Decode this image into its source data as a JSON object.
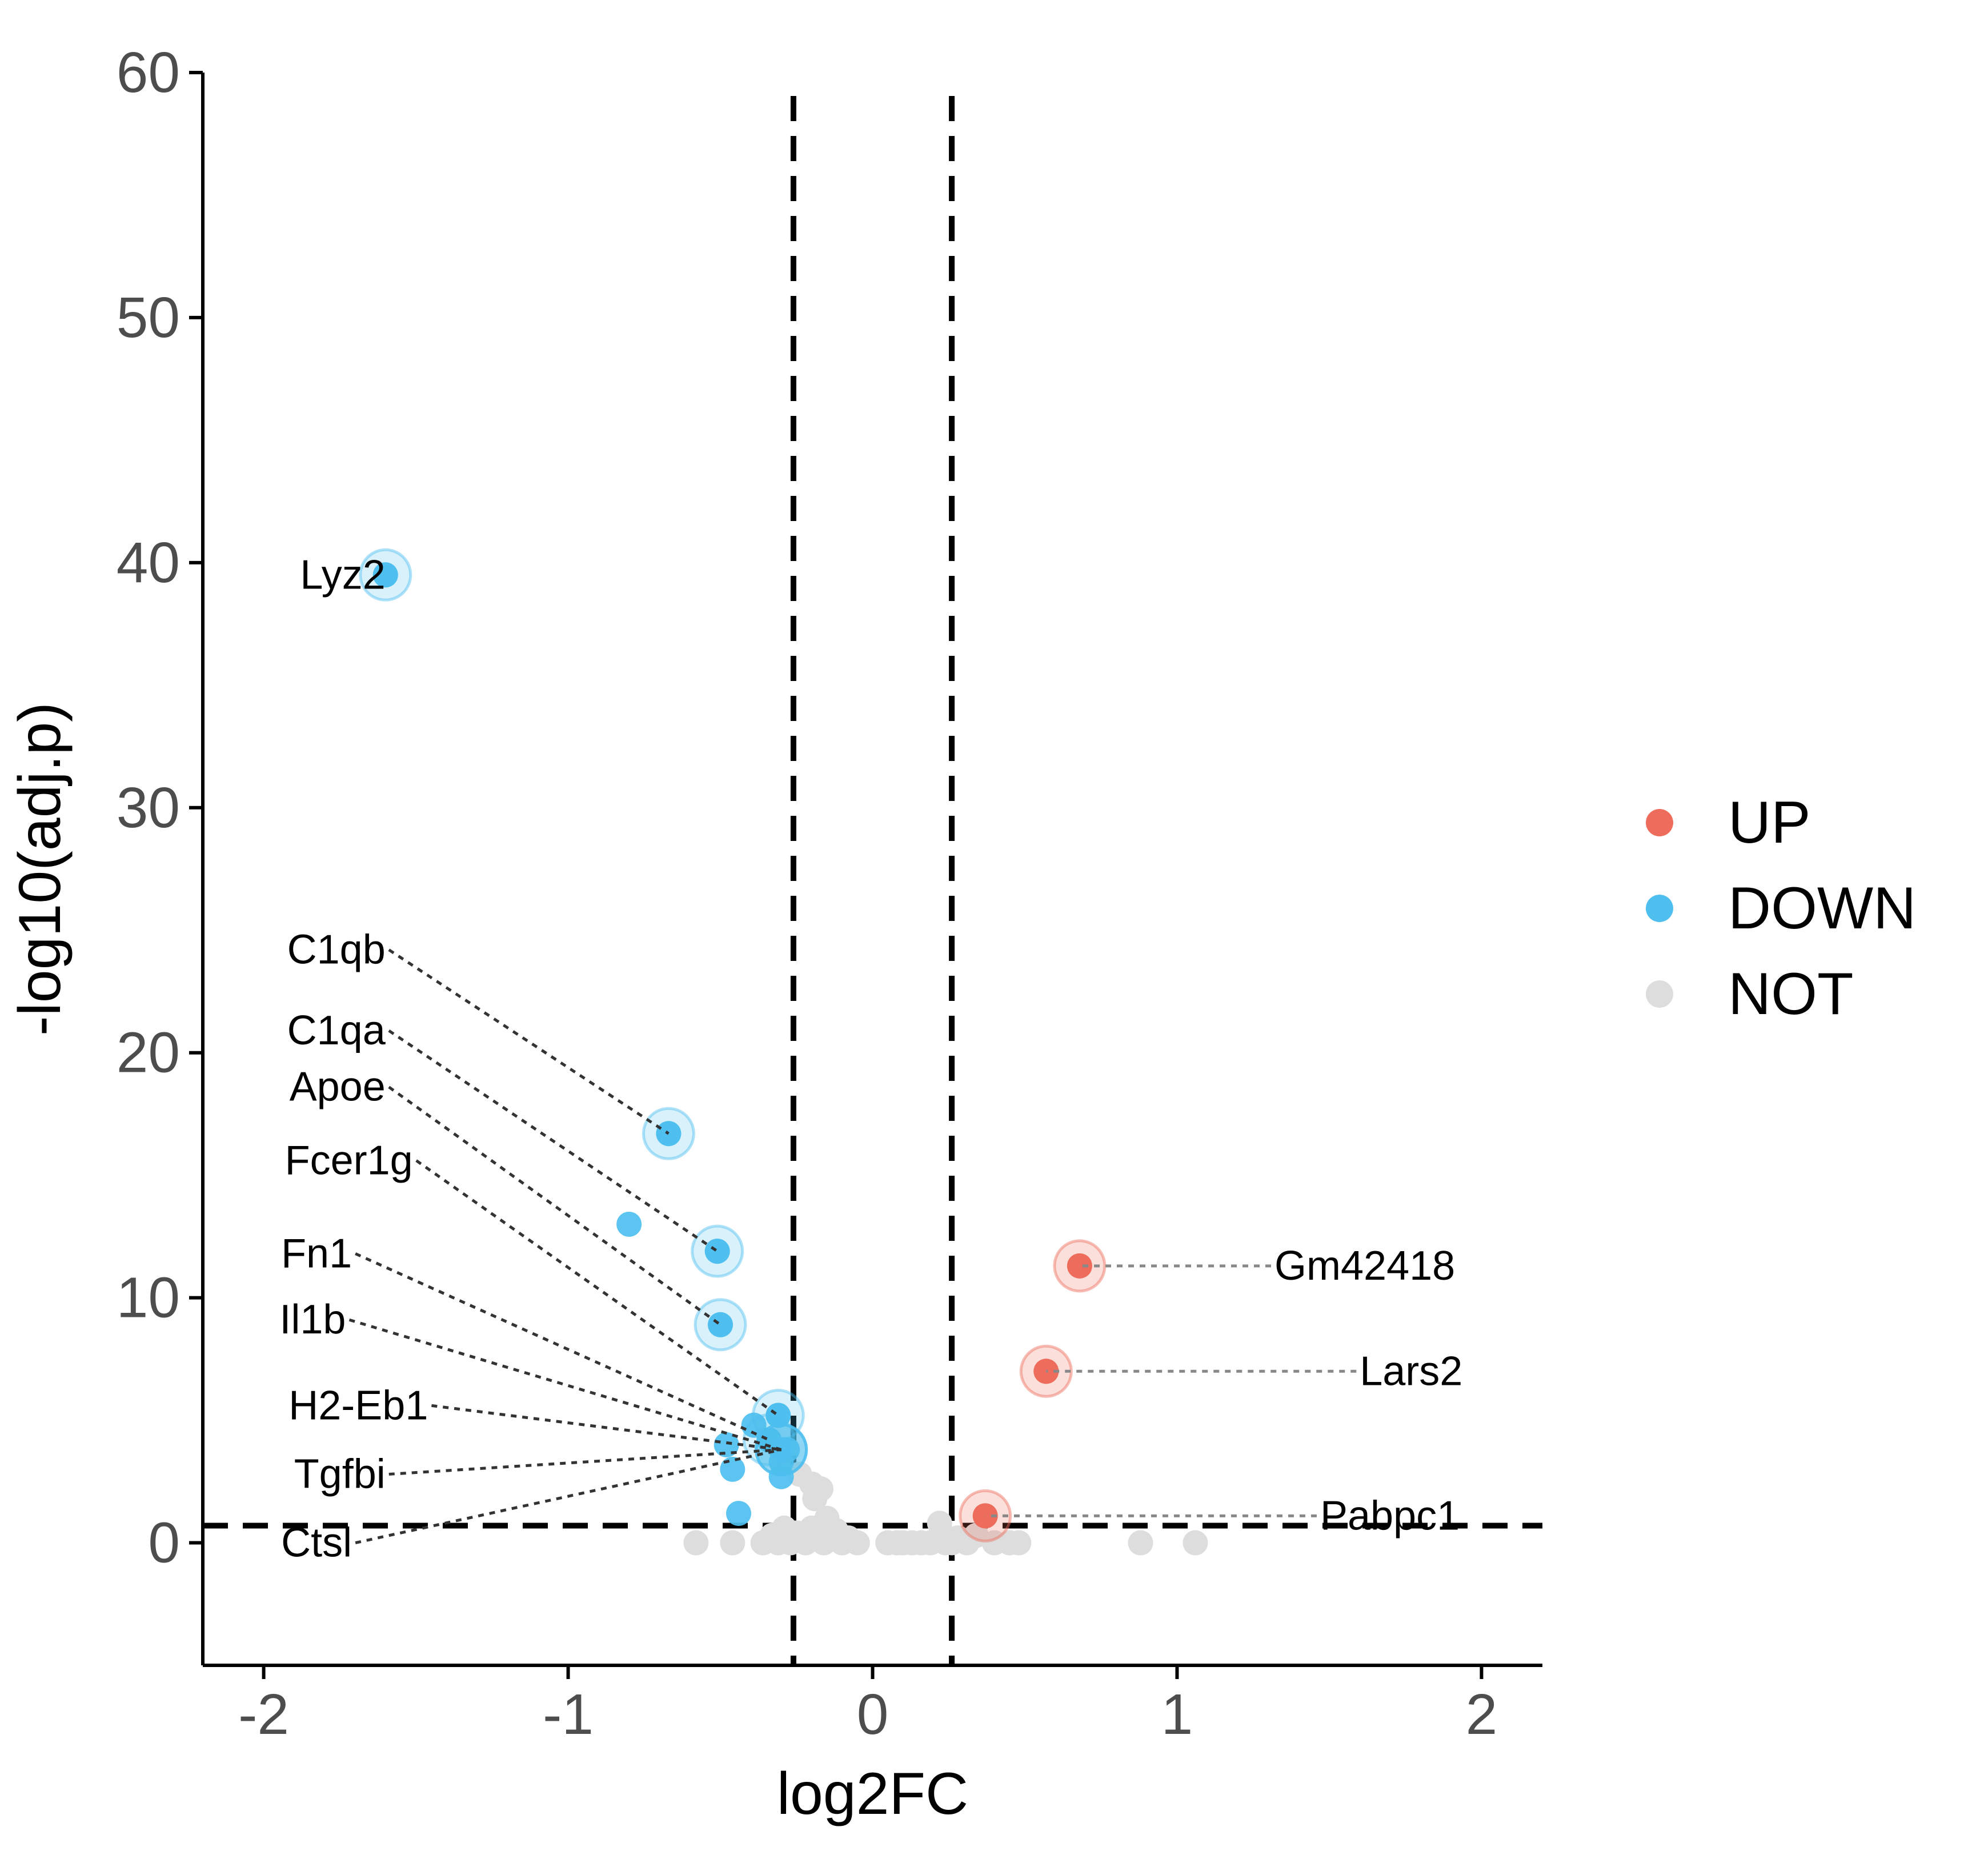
{
  "chart_data": {
    "type": "scatter",
    "title": "",
    "xlabel": "log2FC",
    "ylabel": "-log10(adj.p)",
    "xlim": [
      -2.2,
      2.2
    ],
    "ylim": [
      -5,
      60
    ],
    "x_ticks": [
      -2,
      -1,
      0,
      1,
      2
    ],
    "x_tick_labels": [
      "-2",
      "-1",
      "0",
      "1",
      "2"
    ],
    "y_ticks": [
      0,
      10,
      20,
      30,
      40,
      50,
      60
    ],
    "y_tick_labels": [
      "0",
      "10",
      "20",
      "30",
      "40",
      "50",
      "60"
    ],
    "grid": false,
    "legend_position": "right",
    "thresholds": {
      "log2fc": [
        -0.26,
        0.26
      ],
      "neg_log10_p": 0.7
    },
    "colors": {
      "UP": "#ee6c5c",
      "DOWN": "#4ebfef",
      "NOT": "#dddddd",
      "threshold": "#000000"
    },
    "series": [
      {
        "name": "UP",
        "points": [
          {
            "x": 0.68,
            "y": 11.3
          },
          {
            "x": 0.57,
            "y": 7.0
          },
          {
            "x": 0.37,
            "y": 1.1
          }
        ]
      },
      {
        "name": "DOWN",
        "points": [
          {
            "x": -1.6,
            "y": 39.5
          },
          {
            "x": -0.67,
            "y": 16.7
          },
          {
            "x": -0.8,
            "y": 13.0
          },
          {
            "x": -0.51,
            "y": 11.9
          },
          {
            "x": -0.5,
            "y": 8.9
          },
          {
            "x": -0.31,
            "y": 5.2
          },
          {
            "x": -0.39,
            "y": 4.8
          },
          {
            "x": -0.34,
            "y": 4.2
          },
          {
            "x": -0.28,
            "y": 3.8
          },
          {
            "x": -0.48,
            "y": 4.0
          },
          {
            "x": -0.3,
            "y": 3.3
          },
          {
            "x": -0.46,
            "y": 3.0
          },
          {
            "x": -0.3,
            "y": 2.7
          },
          {
            "x": -0.44,
            "y": 1.2
          }
        ]
      },
      {
        "name": "NOT",
        "points": [
          {
            "x": -0.58,
            "y": 0
          },
          {
            "x": -0.46,
            "y": 0
          },
          {
            "x": -0.36,
            "y": 0
          },
          {
            "x": -0.33,
            "y": 0.3
          },
          {
            "x": -0.31,
            "y": 0
          },
          {
            "x": -0.29,
            "y": 0.6
          },
          {
            "x": -0.27,
            "y": 0
          },
          {
            "x": -0.25,
            "y": 0.4
          },
          {
            "x": -0.24,
            "y": 2.8
          },
          {
            "x": -0.22,
            "y": 0
          },
          {
            "x": -0.2,
            "y": 2.4
          },
          {
            "x": -0.19,
            "y": 1.8
          },
          {
            "x": -0.2,
            "y": 0.6
          },
          {
            "x": -0.17,
            "y": 2.2
          },
          {
            "x": -0.16,
            "y": 0
          },
          {
            "x": -0.15,
            "y": 1.0
          },
          {
            "x": -0.14,
            "y": 0.3
          },
          {
            "x": -0.12,
            "y": 0.5
          },
          {
            "x": -0.1,
            "y": 0
          },
          {
            "x": -0.08,
            "y": 0.2
          },
          {
            "x": -0.05,
            "y": 0
          },
          {
            "x": 0.05,
            "y": 0
          },
          {
            "x": 0.08,
            "y": 0
          },
          {
            "x": 0.1,
            "y": 0
          },
          {
            "x": 0.13,
            "y": 0
          },
          {
            "x": 0.16,
            "y": 0
          },
          {
            "x": 0.19,
            "y": 0
          },
          {
            "x": 0.22,
            "y": 0.8
          },
          {
            "x": 0.24,
            "y": 0
          },
          {
            "x": 0.26,
            "y": 0
          },
          {
            "x": 0.28,
            "y": 0.2
          },
          {
            "x": 0.31,
            "y": 0
          },
          {
            "x": 0.34,
            "y": 0.3
          },
          {
            "x": 0.4,
            "y": 0
          },
          {
            "x": 0.45,
            "y": 0
          },
          {
            "x": 0.48,
            "y": 0
          },
          {
            "x": 0.88,
            "y": 0
          },
          {
            "x": 1.06,
            "y": 0
          }
        ]
      }
    ],
    "annotations": [
      {
        "text": "Lyz2",
        "x": -1.6,
        "y": 39.5,
        "label_x": -1.6,
        "label_y": 39.5,
        "group": "DOWN"
      },
      {
        "text": "C1qb",
        "x": -0.67,
        "y": 16.7,
        "label_x": -1.6,
        "label_y": 24.2,
        "group": "DOWN"
      },
      {
        "text": "C1qa",
        "x": -0.51,
        "y": 11.9,
        "label_x": -1.6,
        "label_y": 20.9,
        "group": "DOWN"
      },
      {
        "text": "Apoe",
        "x": -0.5,
        "y": 8.9,
        "label_x": -1.6,
        "label_y": 18.6,
        "group": "DOWN"
      },
      {
        "text": "Fcer1g",
        "x": -0.31,
        "y": 5.2,
        "label_x": -1.51,
        "label_y": 15.6,
        "group": "DOWN"
      },
      {
        "text": "Fn1",
        "x": -0.34,
        "y": 4.2,
        "label_x": -1.71,
        "label_y": 11.8,
        "group": "DOWN"
      },
      {
        "text": "Il1b",
        "x": -0.3,
        "y": 3.8,
        "label_x": -1.73,
        "label_y": 9.1,
        "group": "DOWN"
      },
      {
        "text": "H2-Eb1",
        "x": -0.3,
        "y": 3.8,
        "label_x": -1.46,
        "label_y": 5.6,
        "group": "DOWN"
      },
      {
        "text": "Tgfbi",
        "x": -0.3,
        "y": 3.8,
        "label_x": -1.6,
        "label_y": 2.8,
        "group": "DOWN"
      },
      {
        "text": "Ctsl",
        "x": -0.3,
        "y": 3.8,
        "label_x": -1.71,
        "label_y": 0,
        "group": "DOWN"
      },
      {
        "text": "Gm42418",
        "x": 0.68,
        "y": 11.3,
        "label_x": 1.32,
        "label_y": 11.3,
        "group": "UP"
      },
      {
        "text": "Lars2",
        "x": 0.57,
        "y": 7.0,
        "label_x": 1.6,
        "label_y": 7.0,
        "group": "UP"
      },
      {
        "text": "Pabpc1",
        "x": 0.37,
        "y": 1.1,
        "label_x": 1.47,
        "label_y": 1.1,
        "group": "UP"
      }
    ]
  }
}
